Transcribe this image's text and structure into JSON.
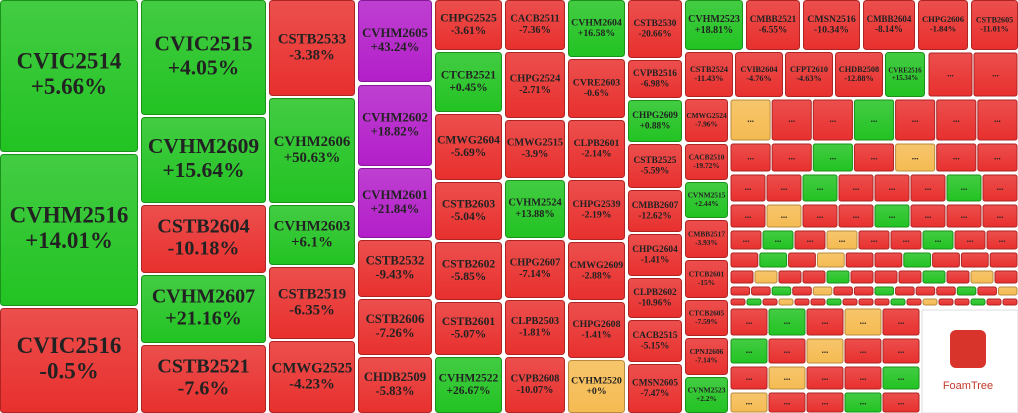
{
  "chart_data": {
    "type": "treemap",
    "categories": [
      "CVIC2514",
      "CVHM2516",
      "CVIC2516",
      "CVIC2515",
      "CVHM2609",
      "CSTB2604",
      "CVHM2607",
      "CSTB2521",
      "CSTB2533",
      "CVHM2606",
      "CVHM2603",
      "CSTB2519",
      "CMWG2525",
      "CVHM2605",
      "CVHM2602",
      "CVHM2601",
      "CSTB2532",
      "CSTB2606",
      "CHDB2509",
      "CHPG2525",
      "CTCB2521",
      "CMWG2604",
      "CSTB2603",
      "CSTB2602",
      "CSTB2601",
      "CVHM2522",
      "CACB2511",
      "CHPG2524",
      "CMWG2515",
      "CVHM2524",
      "CHPG2607",
      "CLPB2503",
      "CVPB2608",
      "CVHM2604",
      "CVRE2603",
      "CLPB2601",
      "CHPG2539",
      "CMWG2609",
      "CHPG2608",
      "CVHM2520",
      "CSTB2530",
      "CVPB2516",
      "CHPG2609",
      "CSTB2525",
      "CMBB2607",
      "CHPG2604",
      "CLPB2602",
      "CACB2515",
      "CMSN2605",
      "CVHM2523",
      "CMBB2521",
      "CMSN2516",
      "CMBB2604",
      "CHPG2606",
      "CSTB2605",
      "CSTB2524",
      "CVIB2604",
      "CFPT2610",
      "CHDB2508",
      "CVRE2516",
      "CMWG2524",
      "CACB2510",
      "CVNM2515",
      "CMBB2517",
      "CTCB2601",
      "CTCB2605",
      "CPNJ2606",
      "CVNM2523"
    ],
    "values": [
      5.66,
      14.01,
      -0.5,
      4.05,
      15.64,
      -10.18,
      21.16,
      -7.6,
      -3.38,
      50.63,
      6.1,
      -6.35,
      -4.23,
      43.24,
      18.82,
      21.84,
      -9.43,
      -7.26,
      -5.83,
      -3.61,
      0.45,
      -5.69,
      -5.04,
      -5.85,
      -5.07,
      26.67,
      -7.36,
      -2.71,
      -3.9,
      13.88,
      -7.14,
      -1.81,
      -10.07,
      16.58,
      -0.6,
      -2.14,
      -2.19,
      -2.88,
      -1.41,
      0,
      -20.66,
      -6.98,
      0.88,
      -5.59,
      -12.62,
      -1.41,
      -10.96,
      -5.15,
      -7.47,
      18.81,
      -6.55,
      -10.34,
      -8.14,
      -1.84,
      -11.01,
      -11.43,
      -4.76,
      -4.63,
      -12.88,
      15.34,
      -7.96,
      -19.72,
      2.44,
      -3.93,
      -15,
      -7.59,
      -7.14,
      2.2
    ],
    "value_labels": [
      "+5.66%",
      "+14.01%",
      "-0.5%",
      "+4.05%",
      "+15.64%",
      "-10.18%",
      "+21.16%",
      "-7.6%",
      "-3.38%",
      "+50.63%",
      "+6.1%",
      "-6.35%",
      "-4.23%",
      "+43.24%",
      "+18.82%",
      "+21.84%",
      "-9.43%",
      "-7.26%",
      "-5.83%",
      "-3.61%",
      "+0.45%",
      "-5.69%",
      "-5.04%",
      "-5.85%",
      "-5.07%",
      "+26.67%",
      "-7.36%",
      "-2.71%",
      "-3.9%",
      "+13.88%",
      "-7.14%",
      "-1.81%",
      "-10.07%",
      "+16.58%",
      "-0.6%",
      "-2.14%",
      "-2.19%",
      "-2.88%",
      "-1.41%",
      "+0%",
      "-20.66%",
      "-6.98%",
      "+0.88%",
      "-5.59%",
      "-12.62%",
      "-1.41%",
      "-10.96%",
      "-5.15%",
      "-7.47%",
      "+18.81%",
      "-6.55%",
      "-10.34%",
      "-8.14%",
      "-1.84%",
      "-11.01%",
      "-11.43%",
      "-4.76%",
      "-4.63%",
      "-12.88%",
      "+15.34%",
      "-7.96%",
      "-19.72%",
      "+2.44%",
      "-3.93%",
      "-15%",
      "-7.59%",
      "-7.14%",
      "+2.2%"
    ],
    "colors": {
      "up": "#22c322",
      "down": "#e8302e",
      "ceiling": "#b31ec9",
      "flat": "#f5bb52"
    },
    "ceiling": [
      "CVHM2605",
      "CVHM2602",
      "CVHM2601"
    ],
    "more_label": "...",
    "logo": "FoamTree"
  }
}
